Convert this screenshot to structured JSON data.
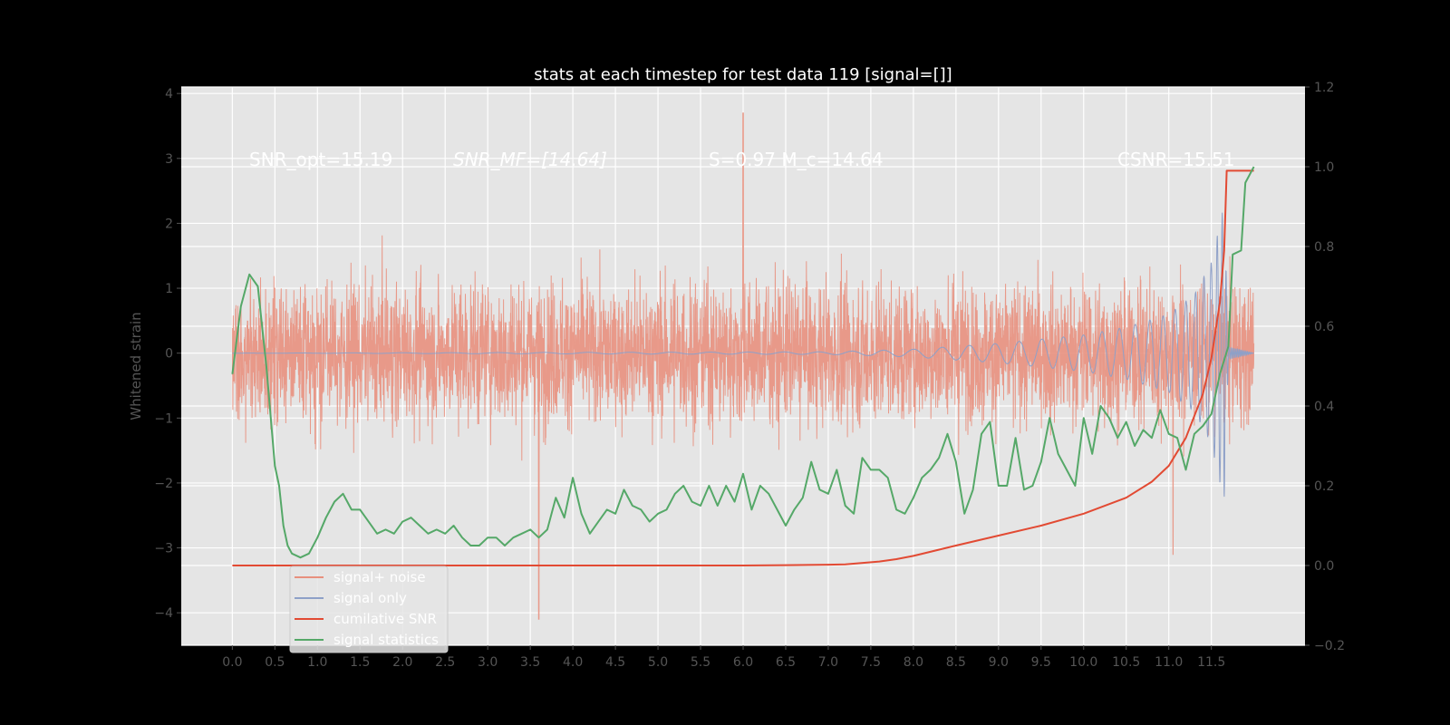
{
  "chart_data": {
    "type": "line",
    "title": "stats at each timestep for test data 119 [signal=[]]",
    "ylabel": "Whitened strain",
    "xlabel": "",
    "x_ticks": [
      "0.0",
      "0.5",
      "1.0",
      "1.5",
      "2.0",
      "2.5",
      "3.0",
      "3.5",
      "4.0",
      "4.5",
      "5.0",
      "5.5",
      "6.0",
      "6.5",
      "7.0",
      "7.5",
      "8.0",
      "8.5",
      "9.0",
      "9.5",
      "10.0",
      "10.5",
      "11.0",
      "11.5"
    ],
    "x_range": [
      -0.6,
      12.6
    ],
    "ylim_left": [
      -4.5,
      4.1
    ],
    "ylim_right": [
      -0.2,
      1.2
    ],
    "y_left_ticks": [
      4,
      3,
      2,
      1,
      0,
      -1,
      -2,
      -3,
      -4
    ],
    "y_right_ticks": [
      1.2,
      1.0,
      0.8,
      0.6,
      0.4,
      0.2,
      0.0,
      -0.2
    ],
    "annotations": [
      {
        "id": "snr-opt",
        "text": "SNR_opt=15.19"
      },
      {
        "id": "snr-mf",
        "text": "SNR_MF=[14.64]"
      },
      {
        "id": "s-mc",
        "text": "S=0.97   M_c=14.64"
      },
      {
        "id": "csnr",
        "text": "CSNR=15.51"
      }
    ],
    "legend": {
      "placement": "lower-left",
      "entries": [
        {
          "label": "signal+ noise",
          "color": "#e8907e"
        },
        {
          "label": "signal only",
          "color": "#8ea0c8"
        },
        {
          "label": "cumilative SNR",
          "color": "#e24a33"
        },
        {
          "label": "signal statistics",
          "color": "#55a868"
        }
      ]
    },
    "series": [
      {
        "name": "signal+ noise",
        "axis": "left",
        "description": "noisy whitened strain, approx amplitude ±1.6 with spikes up to ~3.7 at t≈6.0 and ~-4.1 at t≈3.6",
        "x_start": 0.0,
        "x_end": 12.0,
        "envelope": 1.6
      },
      {
        "name": "signal only",
        "axis": "left",
        "description": "chirp signal growing in amplitude toward merger at ~11.7",
        "points": [
          [
            0.0,
            0.0
          ],
          [
            7.0,
            0.02
          ],
          [
            8.0,
            0.06
          ],
          [
            9.0,
            0.15
          ],
          [
            10.0,
            0.28
          ],
          [
            10.5,
            0.4
          ],
          [
            11.0,
            0.6
          ],
          [
            11.3,
            0.9
          ],
          [
            11.5,
            1.4
          ],
          [
            11.65,
            2.3
          ],
          [
            11.7,
            0.1
          ],
          [
            12.0,
            0.0
          ]
        ]
      },
      {
        "name": "cumilative SNR",
        "axis": "right",
        "points": [
          [
            0.0,
            0.0
          ],
          [
            1.0,
            0.0
          ],
          [
            2.0,
            0.0
          ],
          [
            3.0,
            0.0
          ],
          [
            4.0,
            0.0
          ],
          [
            5.0,
            0.0
          ],
          [
            6.0,
            0.0
          ],
          [
            6.5,
            0.001
          ],
          [
            7.0,
            0.002
          ],
          [
            7.2,
            0.003
          ],
          [
            7.6,
            0.01
          ],
          [
            7.8,
            0.016
          ],
          [
            8.0,
            0.024
          ],
          [
            8.5,
            0.05
          ],
          [
            9.0,
            0.075
          ],
          [
            9.5,
            0.1
          ],
          [
            10.0,
            0.13
          ],
          [
            10.5,
            0.17
          ],
          [
            10.8,
            0.21
          ],
          [
            11.0,
            0.25
          ],
          [
            11.2,
            0.32
          ],
          [
            11.4,
            0.43
          ],
          [
            11.5,
            0.52
          ],
          [
            11.6,
            0.66
          ],
          [
            11.65,
            0.79
          ],
          [
            11.68,
            0.99
          ],
          [
            12.0,
            0.99
          ]
        ]
      },
      {
        "name": "signal statistics",
        "axis": "right",
        "points": [
          [
            0.0,
            0.48
          ],
          [
            0.1,
            0.65
          ],
          [
            0.2,
            0.73
          ],
          [
            0.3,
            0.7
          ],
          [
            0.4,
            0.5
          ],
          [
            0.5,
            0.25
          ],
          [
            0.55,
            0.2
          ],
          [
            0.6,
            0.1
          ],
          [
            0.65,
            0.05
          ],
          [
            0.7,
            0.03
          ],
          [
            0.8,
            0.02
          ],
          [
            0.9,
            0.03
          ],
          [
            1.0,
            0.07
          ],
          [
            1.1,
            0.12
          ],
          [
            1.2,
            0.16
          ],
          [
            1.3,
            0.18
          ],
          [
            1.4,
            0.14
          ],
          [
            1.5,
            0.14
          ],
          [
            1.6,
            0.11
          ],
          [
            1.7,
            0.08
          ],
          [
            1.8,
            0.09
          ],
          [
            1.9,
            0.08
          ],
          [
            2.0,
            0.11
          ],
          [
            2.1,
            0.12
          ],
          [
            2.2,
            0.1
          ],
          [
            2.3,
            0.08
          ],
          [
            2.4,
            0.09
          ],
          [
            2.5,
            0.08
          ],
          [
            2.6,
            0.1
          ],
          [
            2.7,
            0.07
          ],
          [
            2.8,
            0.05
          ],
          [
            2.9,
            0.05
          ],
          [
            3.0,
            0.07
          ],
          [
            3.1,
            0.07
          ],
          [
            3.2,
            0.05
          ],
          [
            3.3,
            0.07
          ],
          [
            3.4,
            0.08
          ],
          [
            3.5,
            0.09
          ],
          [
            3.6,
            0.07
          ],
          [
            3.7,
            0.09
          ],
          [
            3.8,
            0.17
          ],
          [
            3.9,
            0.12
          ],
          [
            4.0,
            0.22
          ],
          [
            4.1,
            0.13
          ],
          [
            4.2,
            0.08
          ],
          [
            4.3,
            0.11
          ],
          [
            4.4,
            0.14
          ],
          [
            4.5,
            0.13
          ],
          [
            4.6,
            0.19
          ],
          [
            4.7,
            0.15
          ],
          [
            4.8,
            0.14
          ],
          [
            4.9,
            0.11
          ],
          [
            5.0,
            0.13
          ],
          [
            5.1,
            0.14
          ],
          [
            5.2,
            0.18
          ],
          [
            5.3,
            0.2
          ],
          [
            5.4,
            0.16
          ],
          [
            5.5,
            0.15
          ],
          [
            5.6,
            0.2
          ],
          [
            5.7,
            0.15
          ],
          [
            5.8,
            0.2
          ],
          [
            5.9,
            0.16
          ],
          [
            6.0,
            0.23
          ],
          [
            6.1,
            0.14
          ],
          [
            6.2,
            0.2
          ],
          [
            6.3,
            0.18
          ],
          [
            6.4,
            0.14
          ],
          [
            6.5,
            0.1
          ],
          [
            6.6,
            0.14
          ],
          [
            6.7,
            0.17
          ],
          [
            6.8,
            0.26
          ],
          [
            6.9,
            0.19
          ],
          [
            7.0,
            0.18
          ],
          [
            7.1,
            0.24
          ],
          [
            7.2,
            0.15
          ],
          [
            7.3,
            0.13
          ],
          [
            7.4,
            0.27
          ],
          [
            7.5,
            0.24
          ],
          [
            7.6,
            0.24
          ],
          [
            7.7,
            0.22
          ],
          [
            7.8,
            0.14
          ],
          [
            7.9,
            0.13
          ],
          [
            8.0,
            0.17
          ],
          [
            8.1,
            0.22
          ],
          [
            8.2,
            0.24
          ],
          [
            8.3,
            0.27
          ],
          [
            8.4,
            0.33
          ],
          [
            8.5,
            0.26
          ],
          [
            8.6,
            0.13
          ],
          [
            8.7,
            0.19
          ],
          [
            8.8,
            0.33
          ],
          [
            8.9,
            0.36
          ],
          [
            9.0,
            0.2
          ],
          [
            9.1,
            0.2
          ],
          [
            9.2,
            0.32
          ],
          [
            9.3,
            0.19
          ],
          [
            9.4,
            0.2
          ],
          [
            9.5,
            0.26
          ],
          [
            9.6,
            0.37
          ],
          [
            9.7,
            0.28
          ],
          [
            9.8,
            0.24
          ],
          [
            9.9,
            0.2
          ],
          [
            10.0,
            0.37
          ],
          [
            10.1,
            0.28
          ],
          [
            10.2,
            0.4
          ],
          [
            10.3,
            0.37
          ],
          [
            10.4,
            0.32
          ],
          [
            10.5,
            0.36
          ],
          [
            10.6,
            0.3
          ],
          [
            10.7,
            0.34
          ],
          [
            10.8,
            0.32
          ],
          [
            10.9,
            0.39
          ],
          [
            11.0,
            0.33
          ],
          [
            11.1,
            0.32
          ],
          [
            11.2,
            0.24
          ],
          [
            11.3,
            0.33
          ],
          [
            11.4,
            0.35
          ],
          [
            11.5,
            0.38
          ],
          [
            11.6,
            0.48
          ],
          [
            11.7,
            0.55
          ],
          [
            11.75,
            0.78
          ],
          [
            11.85,
            0.79
          ],
          [
            11.9,
            0.96
          ],
          [
            12.0,
            1.0
          ]
        ]
      }
    ]
  }
}
